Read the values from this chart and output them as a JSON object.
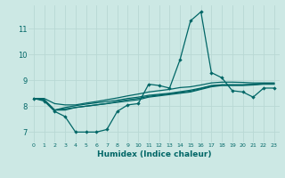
{
  "xlabel": "Humidex (Indice chaleur)",
  "ylabel": "",
  "bg_color": "#cce8e4",
  "line_color": "#006666",
  "grid_color": "#b8d8d4",
  "xlim": [
    -0.5,
    23.5
  ],
  "ylim": [
    6.6,
    11.9
  ],
  "xticks": [
    0,
    1,
    2,
    3,
    4,
    5,
    6,
    7,
    8,
    9,
    10,
    11,
    12,
    13,
    14,
    15,
    16,
    17,
    18,
    19,
    20,
    21,
    22,
    23
  ],
  "yticks": [
    7,
    8,
    9,
    10,
    11
  ],
  "series_main": [
    8.3,
    8.2,
    7.8,
    7.6,
    7.0,
    7.0,
    7.0,
    7.1,
    7.8,
    8.05,
    8.1,
    8.85,
    8.8,
    8.7,
    9.8,
    11.3,
    11.65,
    9.3,
    9.1,
    8.6,
    8.55,
    8.35,
    8.7,
    8.7
  ],
  "series_smooth": [
    [
      8.3,
      8.25,
      7.85,
      7.85,
      7.95,
      8.0,
      8.05,
      8.1,
      8.15,
      8.2,
      8.25,
      8.35,
      8.4,
      8.45,
      8.5,
      8.55,
      8.65,
      8.75,
      8.8,
      8.8,
      8.8,
      8.82,
      8.85,
      8.85
    ],
    [
      8.3,
      8.25,
      7.85,
      7.9,
      7.95,
      8.0,
      8.05,
      8.1,
      8.18,
      8.25,
      8.3,
      8.38,
      8.43,
      8.48,
      8.53,
      8.58,
      8.68,
      8.78,
      8.82,
      8.82,
      8.82,
      8.84,
      8.87,
      8.87
    ],
    [
      8.3,
      8.25,
      7.85,
      7.95,
      8.02,
      8.08,
      8.13,
      8.18,
      8.23,
      8.3,
      8.35,
      8.42,
      8.46,
      8.5,
      8.56,
      8.62,
      8.7,
      8.8,
      8.83,
      8.83,
      8.83,
      8.85,
      8.88,
      8.88
    ],
    [
      8.3,
      8.3,
      8.1,
      8.05,
      8.05,
      8.12,
      8.18,
      8.25,
      8.32,
      8.4,
      8.47,
      8.55,
      8.6,
      8.65,
      8.72,
      8.75,
      8.82,
      8.9,
      8.93,
      8.93,
      8.92,
      8.9,
      8.9,
      8.9
    ]
  ]
}
